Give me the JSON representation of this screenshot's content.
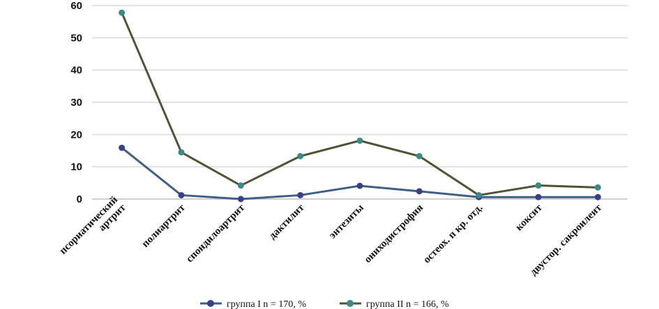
{
  "chart_data": {
    "type": "line",
    "categories": [
      [
        "псориатический",
        "артрит"
      ],
      [
        "полиартрит"
      ],
      [
        "спондилоартрит"
      ],
      [
        "дактилит"
      ],
      [
        "энтезиты"
      ],
      [
        "ониходистрофия"
      ],
      [
        "остеох. п кр. отд."
      ],
      [
        "коксит"
      ],
      [
        "двустор. сакроилеит"
      ]
    ],
    "ylim": [
      0,
      60
    ],
    "yticks": [
      0,
      10,
      20,
      30,
      40,
      50,
      60
    ],
    "grid": true,
    "legend_position": "bottom",
    "series": [
      {
        "name": "группа I n = 170, %",
        "line_color": "#3e5f86",
        "marker_color": "#3a3f8c",
        "values": [
          15.9,
          1.2,
          0,
          1.2,
          4.1,
          2.4,
          0.6,
          0.6,
          0.6
        ]
      },
      {
        "name": "группа II n = 166, %",
        "line_color": "#4e5533",
        "marker_color": "#3a8a86",
        "values": [
          57.8,
          14.5,
          4.2,
          13.3,
          18.1,
          13.3,
          1.2,
          4.2,
          3.6
        ]
      }
    ]
  }
}
